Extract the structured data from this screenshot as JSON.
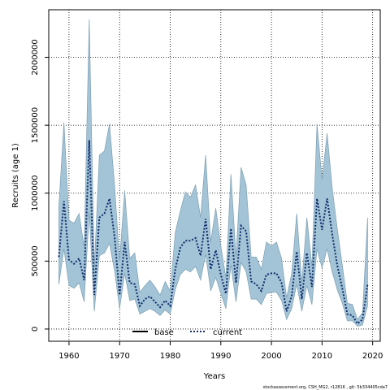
{
  "chart_data": {
    "type": "line",
    "title": "",
    "xlabel": "Years",
    "ylabel": "Recruits (age 1)",
    "xlim": [
      1956,
      2021.5
    ],
    "ylim": [
      -90000,
      2350000
    ],
    "grid": true,
    "x_ticks": [
      1960,
      1970,
      1980,
      1990,
      2000,
      2010,
      2020
    ],
    "y_ticks": [
      0,
      500000,
      1000000,
      1500000,
      2000000
    ],
    "x_tick_labels": [
      "1960",
      "1970",
      "1980",
      "1990",
      "2000",
      "2010",
      "2020"
    ],
    "y_tick_labels": [
      "0",
      "500000",
      "1000000",
      "1500000",
      "2000000"
    ],
    "legend": {
      "placement": "bottom-center",
      "entries": [
        {
          "label": "base",
          "style": "solid",
          "color": "#000000"
        },
        {
          "label": "current",
          "style": "dotted",
          "color": "#1a3a8a"
        }
      ]
    },
    "series": [
      {
        "name": "current",
        "x": [
          1958,
          1959,
          1960,
          1961,
          1962,
          1963,
          1964,
          1965,
          1966,
          1967,
          1968,
          1969,
          1970,
          1971,
          1972,
          1973,
          1974,
          1975,
          1976,
          1977,
          1978,
          1979,
          1980,
          1981,
          1982,
          1983,
          1984,
          1985,
          1986,
          1987,
          1988,
          1989,
          1990,
          1991,
          1992,
          1993,
          1994,
          1995,
          1996,
          1997,
          1998,
          1999,
          2000,
          2001,
          2002,
          2003,
          2004,
          2005,
          2006,
          2007,
          2008,
          2009,
          2010,
          2011,
          2012,
          2013,
          2014,
          2015,
          2016,
          2017,
          2018,
          2019
        ],
        "values": [
          530000,
          940000,
          510000,
          480000,
          520000,
          360000,
          1390000,
          250000,
          820000,
          850000,
          960000,
          680000,
          250000,
          640000,
          340000,
          330000,
          170000,
          220000,
          240000,
          200000,
          160000,
          210000,
          170000,
          440000,
          600000,
          650000,
          650000,
          670000,
          540000,
          810000,
          440000,
          580000,
          400000,
          260000,
          740000,
          340000,
          760000,
          720000,
          350000,
          330000,
          280000,
          400000,
          410000,
          410000,
          340000,
          130000,
          240000,
          570000,
          220000,
          560000,
          310000,
          960000,
          730000,
          960000,
          700000,
          470000,
          300000,
          110000,
          100000,
          40000,
          70000,
          330000
        ],
        "lower": [
          330000,
          590000,
          320000,
          300000,
          340000,
          200000,
          860000,
          130000,
          540000,
          560000,
          630000,
          430000,
          150000,
          410000,
          210000,
          220000,
          110000,
          130000,
          150000,
          130000,
          100000,
          140000,
          110000,
          290000,
          400000,
          440000,
          420000,
          460000,
          360000,
          550000,
          280000,
          380000,
          260000,
          150000,
          470000,
          200000,
          490000,
          420000,
          220000,
          220000,
          180000,
          260000,
          270000,
          270000,
          210000,
          70000,
          150000,
          330000,
          130000,
          320000,
          180000,
          590000,
          450000,
          590000,
          420000,
          290000,
          190000,
          60000,
          60000,
          20000,
          30000,
          170000
        ],
        "upper": [
          900000,
          1520000,
          800000,
          780000,
          850000,
          600000,
          2280000,
          450000,
          1280000,
          1310000,
          1510000,
          1060000,
          500000,
          1020000,
          520000,
          560000,
          270000,
          320000,
          360000,
          310000,
          250000,
          350000,
          280000,
          710000,
          870000,
          1010000,
          970000,
          1060000,
          820000,
          1280000,
          640000,
          890000,
          610000,
          380000,
          1140000,
          530000,
          1190000,
          1060000,
          530000,
          530000,
          440000,
          640000,
          610000,
          640000,
          520000,
          230000,
          410000,
          850000,
          340000,
          820000,
          460000,
          1510000,
          1100000,
          1440000,
          1040000,
          740000,
          470000,
          190000,
          180000,
          70000,
          120000,
          820000
        ]
      }
    ]
  },
  "colors": {
    "band_fill": "#a2c4d6",
    "band_stroke": "#7e9fb3",
    "series_line": "#102a6b"
  },
  "footnote": "stockassessment.org, CSH_MG2, r12816 , git: 5b334405cda7"
}
